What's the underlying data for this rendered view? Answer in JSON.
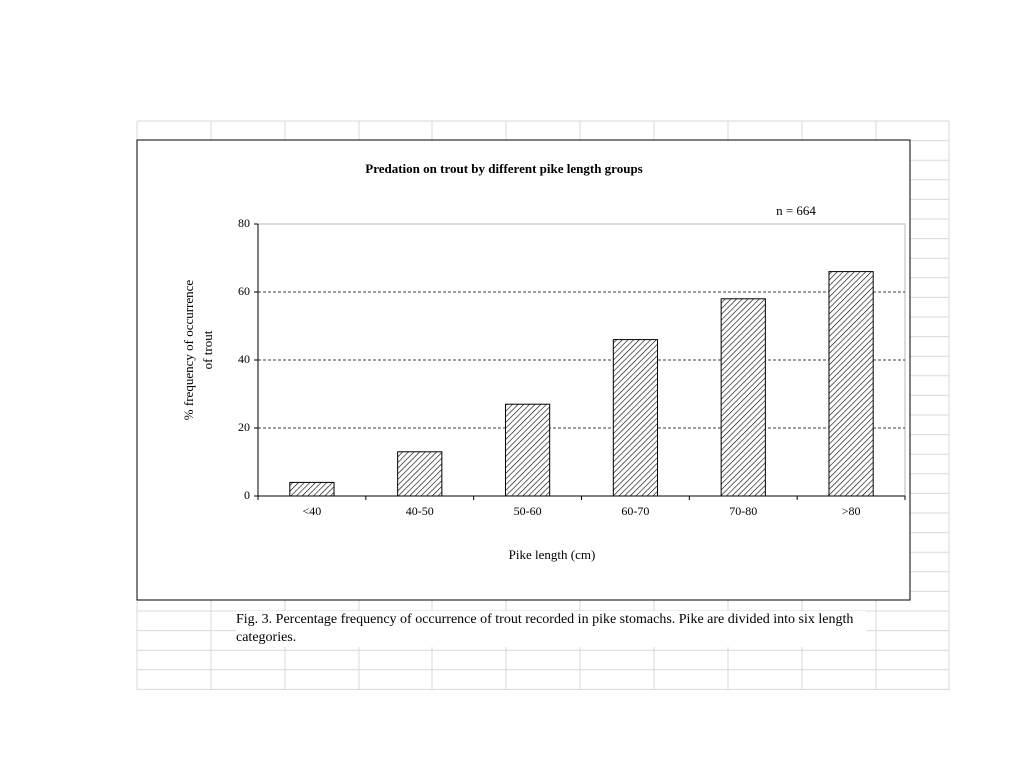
{
  "chart_data": {
    "type": "bar",
    "title": "Predation  on trout by  different  pike length groups",
    "annotation": "n = 664",
    "y_label": [
      "% frequency of occurrence",
      "of trout"
    ],
    "x_label": "Pike length (cm)",
    "categories": [
      "<40",
      "40-50",
      "50-60",
      "60-70",
      "70-80",
      ">80"
    ],
    "values": [
      4,
      13,
      27,
      46,
      58,
      66
    ],
    "ylim": [
      0,
      80
    ],
    "yticks": [
      0,
      20,
      40,
      60,
      80
    ],
    "grid": true,
    "caption": "Fig. 3.  Percentage frequency of occurrence of trout recorded in  pike stomachs.  Pike are divided into six length categories."
  }
}
